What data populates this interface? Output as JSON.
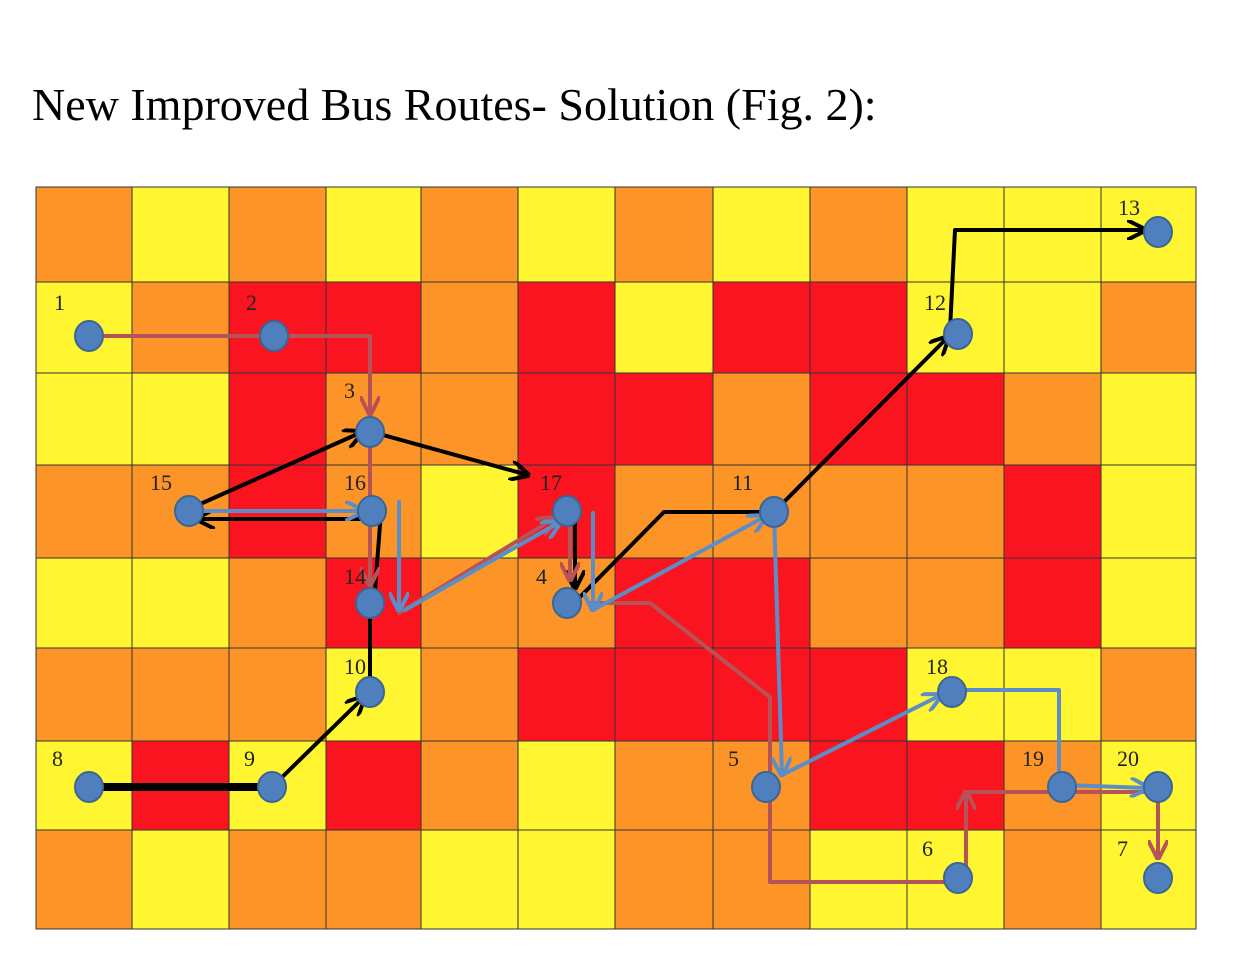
{
  "title": "New Improved Bus Routes- Solution (Fig. 2):",
  "colors": {
    "yellow": "#FFF531",
    "orange": "#FC9427",
    "red": "#F91420",
    "stop": "#4F80BD",
    "route_black": "#000000",
    "route_blue": "#5B8EC9",
    "route_red": "#B65357"
  },
  "grid": {
    "rows": 8,
    "cols": 12,
    "cells": [
      [
        "O",
        "Y",
        "O",
        "Y",
        "O",
        "Y",
        "O",
        "Y",
        "O",
        "Y",
        "Y",
        "Y"
      ],
      [
        "Y",
        "O",
        "R",
        "R",
        "O",
        "R",
        "Y",
        "R",
        "R",
        "Y",
        "Y",
        "O"
      ],
      [
        "Y",
        "Y",
        "R",
        "O",
        "O",
        "R",
        "R",
        "O",
        "R",
        "R",
        "O",
        "Y"
      ],
      [
        "O",
        "O",
        "R",
        "O",
        "Y",
        "R",
        "O",
        "O",
        "O",
        "O",
        "R",
        "Y"
      ],
      [
        "Y",
        "Y",
        "O",
        "R",
        "O",
        "O",
        "R",
        "R",
        "O",
        "O",
        "R",
        "Y"
      ],
      [
        "O",
        "O",
        "O",
        "Y",
        "O",
        "R",
        "R",
        "R",
        "R",
        "Y",
        "Y",
        "O"
      ],
      [
        "Y",
        "R",
        "Y",
        "R",
        "O",
        "Y",
        "O",
        "O",
        "R",
        "R",
        "O",
        "Y"
      ],
      [
        "O",
        "Y",
        "O",
        "O",
        "Y",
        "Y",
        "O",
        "O",
        "Y",
        "Y",
        "O",
        "Y"
      ]
    ]
  },
  "stops": [
    {
      "id": "1",
      "label": "1"
    },
    {
      "id": "2",
      "label": "2"
    },
    {
      "id": "3",
      "label": "3"
    },
    {
      "id": "4",
      "label": "4"
    },
    {
      "id": "5",
      "label": "5"
    },
    {
      "id": "6",
      "label": "6"
    },
    {
      "id": "7",
      "label": "7"
    },
    {
      "id": "8",
      "label": "8"
    },
    {
      "id": "9",
      "label": "9"
    },
    {
      "id": "10",
      "label": "10"
    },
    {
      "id": "11",
      "label": "11"
    },
    {
      "id": "12",
      "label": "12"
    },
    {
      "id": "13",
      "label": "13"
    },
    {
      "id": "14",
      "label": "14"
    },
    {
      "id": "15",
      "label": "15"
    },
    {
      "id": "16",
      "label": "16"
    },
    {
      "id": "17",
      "label": "17"
    },
    {
      "id": "18",
      "label": "18"
    },
    {
      "id": "19",
      "label": "19"
    },
    {
      "id": "20",
      "label": "20"
    }
  ],
  "routes": [
    {
      "color": "black",
      "stops": [
        "8",
        "9",
        "10",
        "14",
        "16",
        "15",
        "3",
        "17",
        "4",
        "11",
        "12",
        "13"
      ]
    },
    {
      "color": "blue",
      "stops": [
        "15",
        "16",
        "14",
        "17",
        "4",
        "11",
        "5",
        "18",
        "19",
        "20"
      ]
    },
    {
      "color": "red",
      "stops": [
        "1",
        "2",
        "3",
        "14",
        "17",
        "4",
        "5",
        "6",
        "20",
        "7"
      ]
    }
  ]
}
